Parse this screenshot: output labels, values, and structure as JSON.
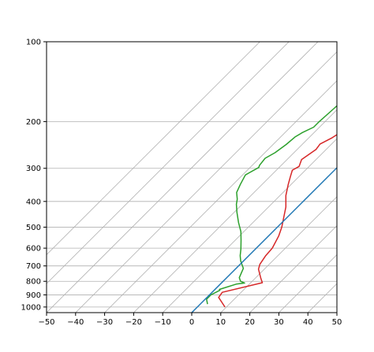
{
  "chart_data": {
    "type": "line",
    "title": "",
    "xlabel": "",
    "ylabel": "",
    "x_scale": "linear",
    "y_scale": "log",
    "y_inverted": true,
    "xlim": [
      -50,
      50
    ],
    "ylim": [
      1050,
      100
    ],
    "x_ticks": [
      -50,
      -40,
      -30,
      -20,
      -10,
      0,
      10,
      20,
      30,
      40,
      50
    ],
    "x_tick_labels": [
      "−50",
      "−40",
      "−30",
      "−20",
      "−10",
      "0",
      "10",
      "20",
      "30",
      "40",
      "50"
    ],
    "y_ticks": [
      100,
      200,
      300,
      400,
      500,
      600,
      700,
      800,
      900,
      1000
    ],
    "y_tick_labels": [
      "100",
      "200",
      "300",
      "400",
      "500",
      "600",
      "700",
      "800",
      "900",
      "1000"
    ],
    "grid": true,
    "skewed_isotherms": {
      "color": "#b0b0b0",
      "temps_at_1000": [
        -70,
        -60,
        -50,
        -40,
        -30,
        -20,
        -10,
        0,
        10,
        20,
        30,
        40,
        50,
        60,
        70,
        80,
        90,
        100,
        110,
        120,
        130,
        140,
        150,
        160,
        170
      ]
    },
    "series": [
      {
        "color": "#d62728",
        "points": [
          [
            9.5,
            1000
          ],
          [
            4,
            920
          ],
          [
            3.5,
            880
          ],
          [
            14,
            810
          ],
          [
            12,
            780
          ],
          [
            8,
            720
          ],
          [
            6.8,
            690
          ],
          [
            5.8,
            640
          ],
          [
            5.5,
            600
          ],
          [
            3.5,
            540
          ],
          [
            1.5,
            500
          ],
          [
            -4,
            420
          ],
          [
            -8,
            380
          ],
          [
            -11,
            345
          ],
          [
            -13,
            322
          ],
          [
            -14.5,
            305
          ],
          [
            -13.5,
            295
          ],
          [
            -15,
            278
          ],
          [
            -13.5,
            255
          ],
          [
            -14,
            243
          ],
          [
            -12,
            230
          ],
          [
            -10,
            210
          ],
          [
            -9,
            203
          ],
          [
            -7.5,
            190
          ],
          [
            -8,
            170
          ],
          [
            -8.5,
            150
          ],
          [
            -8.5,
            140
          ],
          [
            -9,
            130
          ],
          [
            -8,
            120
          ],
          [
            -8,
            117
          ],
          [
            -9,
            112
          ],
          [
            -6,
            108
          ],
          [
            -5.5,
            104
          ],
          [
            -4,
            101
          ]
        ]
      },
      {
        "color": "#2ca02c",
        "points": [
          [
            2.5,
            975
          ],
          [
            0.5,
            935
          ],
          [
            0.5,
            900
          ],
          [
            2,
            865
          ],
          [
            1.5,
            858
          ],
          [
            5.5,
            820
          ],
          [
            8,
            812
          ],
          [
            6,
            800
          ],
          [
            4.3,
            775
          ],
          [
            2.5,
            715
          ],
          [
            -1,
            670
          ],
          [
            -3,
            640
          ],
          [
            -5,
            605
          ],
          [
            -8,
            560
          ],
          [
            -11,
            520
          ],
          [
            -15,
            480
          ],
          [
            -19,
            440
          ],
          [
            -22,
            410
          ],
          [
            -23.5,
            392
          ],
          [
            -26,
            370
          ],
          [
            -27.5,
            345
          ],
          [
            -29,
            318
          ],
          [
            -28.5,
            312
          ],
          [
            -27,
            298
          ],
          [
            -27.5,
            292
          ],
          [
            -28,
            275
          ],
          [
            -26.5,
            262
          ],
          [
            -25.5,
            244
          ],
          [
            -25,
            228
          ],
          [
            -24,
            220
          ],
          [
            -22,
            210
          ],
          [
            -22,
            200
          ],
          [
            -21.5,
            180
          ],
          [
            -21,
            160
          ],
          [
            -20.5,
            150
          ],
          [
            -20,
            140
          ],
          [
            -20,
            132
          ],
          [
            -19.5,
            126
          ],
          [
            -18.5,
            125
          ],
          [
            -18.5,
            120
          ],
          [
            -18,
            117
          ],
          [
            -18.5,
            112
          ],
          [
            -17.5,
            108
          ],
          [
            -16,
            104
          ],
          [
            -14.5,
            101
          ]
        ]
      },
      {
        "color": "#1f77b4",
        "points": [
          [
            0,
            1050
          ],
          [
            0,
            140
          ]
        ]
      }
    ]
  }
}
